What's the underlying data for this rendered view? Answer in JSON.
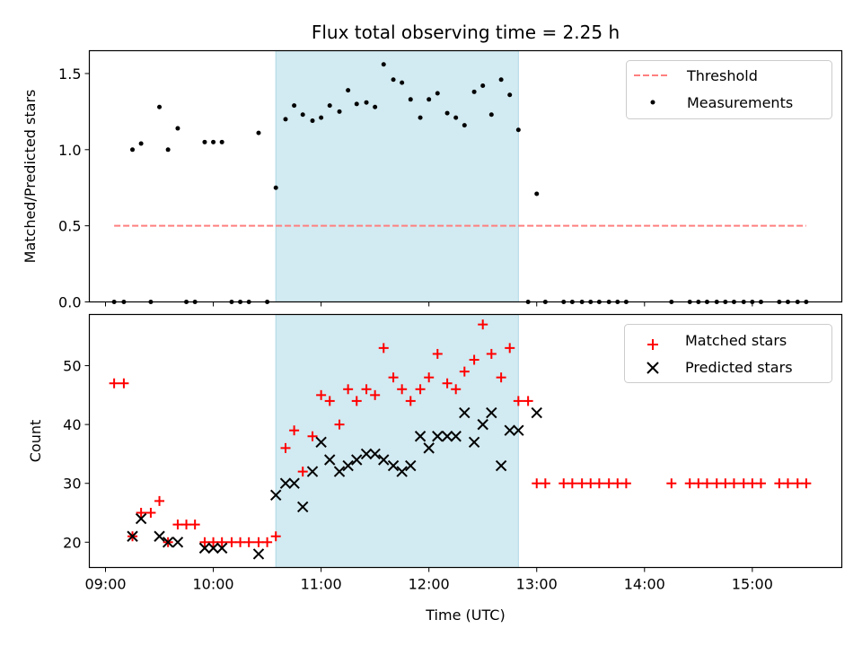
{
  "chart_data": {
    "title": "Flux total observing time = 2.25 h",
    "type": "scatter",
    "x_range_hours": [
      8.85,
      15.83
    ],
    "highlight_span": {
      "start_hour": 10.58,
      "end_hour": 12.83,
      "color": "#add8e6"
    },
    "xlabel": "Time (UTC)",
    "x_ticks": [
      {
        "hour": 9,
        "label": "09:00"
      },
      {
        "hour": 10,
        "label": "10:00"
      },
      {
        "hour": 11,
        "label": "11:00"
      },
      {
        "hour": 12,
        "label": "12:00"
      },
      {
        "hour": 13,
        "label": "13:00"
      },
      {
        "hour": 14,
        "label": "14:00"
      },
      {
        "hour": 15,
        "label": "15:00"
      }
    ],
    "top": {
      "ylabel": "Matched/Predicted stars",
      "ylim": [
        0,
        1.65
      ],
      "y_ticks": [
        {
          "v": 0,
          "label": "0.0"
        },
        {
          "v": 0.5,
          "label": "0.5"
        },
        {
          "v": 1.0,
          "label": "1.0"
        },
        {
          "v": 1.5,
          "label": "1.5"
        }
      ],
      "threshold": {
        "name": "Threshold",
        "value": 0.5,
        "x_start": 9.08,
        "x_end": 15.5,
        "color": "#ff7f7f"
      },
      "measurements": {
        "name": "Measurements",
        "points": [
          [
            9.08,
            0
          ],
          [
            9.17,
            0
          ],
          [
            9.25,
            1.0
          ],
          [
            9.33,
            1.04
          ],
          [
            9.42,
            0
          ],
          [
            9.5,
            1.28
          ],
          [
            9.58,
            1.0
          ],
          [
            9.67,
            1.14
          ],
          [
            9.75,
            0
          ],
          [
            9.83,
            0
          ],
          [
            9.92,
            1.05
          ],
          [
            10.0,
            1.05
          ],
          [
            10.08,
            1.05
          ],
          [
            10.17,
            0
          ],
          [
            10.25,
            0
          ],
          [
            10.33,
            0
          ],
          [
            10.42,
            1.11
          ],
          [
            10.5,
            0
          ],
          [
            10.58,
            0.75
          ],
          [
            10.67,
            1.2
          ],
          [
            10.75,
            1.29
          ],
          [
            10.83,
            1.23
          ],
          [
            10.92,
            1.19
          ],
          [
            11.0,
            1.21
          ],
          [
            11.08,
            1.29
          ],
          [
            11.17,
            1.25
          ],
          [
            11.25,
            1.39
          ],
          [
            11.33,
            1.3
          ],
          [
            11.42,
            1.31
          ],
          [
            11.5,
            1.28
          ],
          [
            11.58,
            1.56
          ],
          [
            11.67,
            1.46
          ],
          [
            11.75,
            1.44
          ],
          [
            11.83,
            1.33
          ],
          [
            11.92,
            1.21
          ],
          [
            12.0,
            1.33
          ],
          [
            12.08,
            1.37
          ],
          [
            12.17,
            1.24
          ],
          [
            12.25,
            1.21
          ],
          [
            12.33,
            1.16
          ],
          [
            12.42,
            1.38
          ],
          [
            12.5,
            1.42
          ],
          [
            12.58,
            1.23
          ],
          [
            12.67,
            1.46
          ],
          [
            12.75,
            1.36
          ],
          [
            12.83,
            1.13
          ],
          [
            12.92,
            0
          ],
          [
            13.0,
            0.71
          ],
          [
            13.08,
            0
          ],
          [
            13.25,
            0
          ],
          [
            13.33,
            0
          ],
          [
            13.42,
            0
          ],
          [
            13.5,
            0
          ],
          [
            13.58,
            0
          ],
          [
            13.67,
            0
          ],
          [
            13.75,
            0
          ],
          [
            13.83,
            0
          ],
          [
            14.25,
            0
          ],
          [
            14.42,
            0
          ],
          [
            14.5,
            0
          ],
          [
            14.58,
            0
          ],
          [
            14.67,
            0
          ],
          [
            14.75,
            0
          ],
          [
            14.83,
            0
          ],
          [
            14.92,
            0
          ],
          [
            15.0,
            0
          ],
          [
            15.08,
            0
          ],
          [
            15.25,
            0
          ],
          [
            15.33,
            0
          ],
          [
            15.42,
            0
          ],
          [
            15.5,
            0
          ]
        ]
      }
    },
    "bottom": {
      "ylabel": "Count",
      "ylim": [
        15.7,
        58.7
      ],
      "y_ticks": [
        {
          "v": 20,
          "label": "20"
        },
        {
          "v": 30,
          "label": "30"
        },
        {
          "v": 40,
          "label": "40"
        },
        {
          "v": 50,
          "label": "50"
        }
      ],
      "matched": {
        "name": "Matched stars",
        "color": "#ff0000",
        "points": [
          [
            9.08,
            47
          ],
          [
            9.17,
            47
          ],
          [
            9.25,
            21
          ],
          [
            9.33,
            25
          ],
          [
            9.42,
            25
          ],
          [
            9.5,
            27
          ],
          [
            9.58,
            20
          ],
          [
            9.67,
            23
          ],
          [
            9.75,
            23
          ],
          [
            9.83,
            23
          ],
          [
            9.92,
            20
          ],
          [
            10.0,
            20
          ],
          [
            10.08,
            20
          ],
          [
            10.17,
            20
          ],
          [
            10.25,
            20
          ],
          [
            10.33,
            20
          ],
          [
            10.42,
            20
          ],
          [
            10.5,
            20
          ],
          [
            10.58,
            21
          ],
          [
            10.67,
            36
          ],
          [
            10.75,
            39
          ],
          [
            10.83,
            32
          ],
          [
            10.92,
            38
          ],
          [
            11.0,
            45
          ],
          [
            11.08,
            44
          ],
          [
            11.17,
            40
          ],
          [
            11.25,
            46
          ],
          [
            11.33,
            44
          ],
          [
            11.42,
            46
          ],
          [
            11.5,
            45
          ],
          [
            11.58,
            53
          ],
          [
            11.67,
            48
          ],
          [
            11.75,
            46
          ],
          [
            11.83,
            44
          ],
          [
            11.92,
            46
          ],
          [
            12.0,
            48
          ],
          [
            12.08,
            52
          ],
          [
            12.17,
            47
          ],
          [
            12.25,
            46
          ],
          [
            12.33,
            49
          ],
          [
            12.42,
            51
          ],
          [
            12.5,
            57
          ],
          [
            12.58,
            52
          ],
          [
            12.67,
            48
          ],
          [
            12.75,
            53
          ],
          [
            12.83,
            44
          ],
          [
            12.92,
            44
          ],
          [
            13.0,
            30
          ],
          [
            13.08,
            30
          ],
          [
            13.25,
            30
          ],
          [
            13.33,
            30
          ],
          [
            13.42,
            30
          ],
          [
            13.5,
            30
          ],
          [
            13.58,
            30
          ],
          [
            13.67,
            30
          ],
          [
            13.75,
            30
          ],
          [
            13.83,
            30
          ],
          [
            14.25,
            30
          ],
          [
            14.42,
            30
          ],
          [
            14.5,
            30
          ],
          [
            14.58,
            30
          ],
          [
            14.67,
            30
          ],
          [
            14.75,
            30
          ],
          [
            14.83,
            30
          ],
          [
            14.92,
            30
          ],
          [
            15.0,
            30
          ],
          [
            15.08,
            30
          ],
          [
            15.25,
            30
          ],
          [
            15.33,
            30
          ],
          [
            15.42,
            30
          ],
          [
            15.5,
            30
          ]
        ]
      },
      "predicted": {
        "name": "Predicted stars",
        "color": "#000000",
        "points": [
          [
            9.25,
            21
          ],
          [
            9.33,
            24
          ],
          [
            9.5,
            21
          ],
          [
            9.58,
            20
          ],
          [
            9.67,
            20
          ],
          [
            9.92,
            19
          ],
          [
            10.0,
            19
          ],
          [
            10.08,
            19
          ],
          [
            10.42,
            18
          ],
          [
            10.58,
            28
          ],
          [
            10.67,
            30
          ],
          [
            10.75,
            30
          ],
          [
            10.83,
            26
          ],
          [
            10.92,
            32
          ],
          [
            11.0,
            37
          ],
          [
            11.08,
            34
          ],
          [
            11.17,
            32
          ],
          [
            11.25,
            33
          ],
          [
            11.33,
            34
          ],
          [
            11.42,
            35
          ],
          [
            11.5,
            35
          ],
          [
            11.58,
            34
          ],
          [
            11.67,
            33
          ],
          [
            11.75,
            32
          ],
          [
            11.83,
            33
          ],
          [
            11.92,
            38
          ],
          [
            12.0,
            36
          ],
          [
            12.08,
            38
          ],
          [
            12.17,
            38
          ],
          [
            12.25,
            38
          ],
          [
            12.33,
            42
          ],
          [
            12.42,
            37
          ],
          [
            12.5,
            40
          ],
          [
            12.58,
            42
          ],
          [
            12.67,
            33
          ],
          [
            12.75,
            39
          ],
          [
            12.83,
            39
          ],
          [
            13.0,
            42
          ]
        ]
      }
    }
  }
}
